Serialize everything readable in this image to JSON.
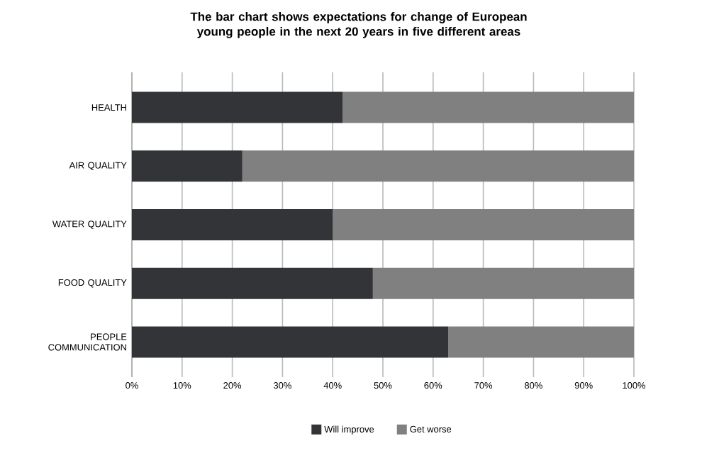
{
  "chart_data": {
    "type": "bar",
    "orientation": "horizontal",
    "stacked": true,
    "title": "The bar chart shows expectations for change of European young people in the next 20 years in five different areas",
    "categories": [
      "HEALTH",
      "AIR QUALITY",
      "WATER QUALITY",
      "FOOD QUALITY",
      "PEOPLE COMMUNICATION"
    ],
    "series": [
      {
        "name": "Will improve",
        "color": "#333438",
        "values": [
          42,
          22,
          40,
          48,
          63
        ]
      },
      {
        "name": "Get worse",
        "color": "#808080",
        "values": [
          58,
          78,
          60,
          52,
          37
        ]
      }
    ],
    "xlim": [
      0,
      100
    ],
    "xticks": [
      {
        "value": 0,
        "label": "0%"
      },
      {
        "value": 10,
        "label": "10%"
      },
      {
        "value": 20,
        "label": "20%"
      },
      {
        "value": 30,
        "label": "30%"
      },
      {
        "value": 40,
        "label": "40%"
      },
      {
        "value": 50,
        "label": "50%"
      },
      {
        "value": 60,
        "label": "60%"
      },
      {
        "value": 70,
        "label": "70%"
      },
      {
        "value": 80,
        "label": "80%"
      },
      {
        "value": 90,
        "label": "90%"
      },
      {
        "value": 100,
        "label": "100%"
      }
    ],
    "grid": "x",
    "legend": "bottom"
  }
}
